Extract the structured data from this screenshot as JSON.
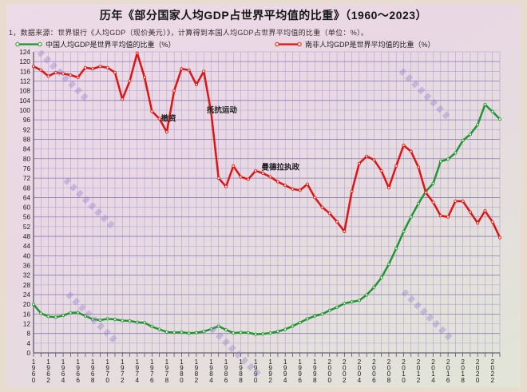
{
  "header": {
    "title": "历年《部分国家人均GDP占世界平均值的比重》（1960～2023）",
    "note": "1，数据来源：世界银行《人均GDP（现价美元）》，计算得到本国人均GDP占世界平均值的比重（单位：%）。"
  },
  "legend": {
    "items": [
      {
        "label": "中国人均GDP是世界平均值的比重（%）",
        "color": "#1f9633"
      },
      {
        "label": "南非人均GDP是世界平均值的比重（%）",
        "color": "#e11212"
      }
    ]
  },
  "colors": {
    "page_background": "#e7dccd",
    "panel_gradient_top": "#eddbe8",
    "panel_gradient_bottom": "#e1e5d7",
    "grid_line": "#aba1d0",
    "grid_line_major": "#897db4",
    "axis_line": "#46405f",
    "marker_fill": "#f2eed4",
    "china_line": "#1f9633",
    "south_africa_line": "#e11212"
  },
  "chart_data": {
    "type": "line",
    "title": "历年《部分国家人均GDP占世界平均值的比重》（1960～2023）",
    "xlabel": "",
    "ylabel": "",
    "ylim": [
      0,
      124
    ],
    "ytick_step": 4,
    "xtick_step": 2,
    "grid": true,
    "legend_position": "top",
    "years": [
      1960,
      1961,
      1962,
      1963,
      1964,
      1965,
      1966,
      1967,
      1968,
      1969,
      1970,
      1971,
      1972,
      1973,
      1974,
      1975,
      1976,
      1977,
      1978,
      1979,
      1980,
      1981,
      1982,
      1983,
      1984,
      1985,
      1986,
      1987,
      1988,
      1989,
      1990,
      1991,
      1992,
      1993,
      1994,
      1995,
      1996,
      1997,
      1998,
      1999,
      2000,
      2001,
      2002,
      2003,
      2004,
      2005,
      2006,
      2007,
      2008,
      2009,
      2010,
      2011,
      2012,
      2013,
      2014,
      2015,
      2016,
      2017,
      2018,
      2019,
      2020,
      2021,
      2022,
      2023
    ],
    "series": [
      {
        "name": "中国人均GDP是世界平均值的比重（%）",
        "color": "#1f9633",
        "values": [
          20.0,
          16.3,
          15.0,
          14.7,
          15.4,
          16.5,
          16.6,
          15.2,
          13.9,
          13.5,
          14.0,
          13.8,
          13.3,
          13.2,
          12.6,
          12.4,
          10.8,
          9.7,
          8.6,
          8.4,
          8.5,
          8.1,
          8.3,
          8.8,
          9.8,
          11.0,
          9.5,
          8.2,
          8.4,
          8.3,
          7.7,
          7.8,
          8.2,
          8.8,
          9.7,
          11.0,
          12.5,
          14.0,
          15.2,
          16.0,
          17.5,
          18.8,
          20.4,
          21.0,
          21.6,
          23.9,
          27.0,
          31.0,
          36.5,
          43.0,
          50.0,
          56.0,
          61.5,
          66.5,
          69.8,
          78.9,
          79.8,
          82.4,
          87.5,
          90.0,
          94.0,
          102.3,
          99.4,
          96.3
        ]
      },
      {
        "name": "南非人均GDP是世界平均值的比重（%）",
        "color": "#e11212",
        "values": [
          118.0,
          116.5,
          114.0,
          115.5,
          115.0,
          114.5,
          113.5,
          117.5,
          117.0,
          118.0,
          117.5,
          115.5,
          104.5,
          112.0,
          123.5,
          113.5,
          99.5,
          96.5,
          91.0,
          108.0,
          117.0,
          116.5,
          110.5,
          116.0,
          99.0,
          72.0,
          68.5,
          77.0,
          72.5,
          71.5,
          75.0,
          74.0,
          72.5,
          70.5,
          69.0,
          67.5,
          67.0,
          69.5,
          64.0,
          60.0,
          57.5,
          54.0,
          50.0,
          66.5,
          78.0,
          81.0,
          79.5,
          75.0,
          68.0,
          77.0,
          85.5,
          83.0,
          76.5,
          66.0,
          62.0,
          56.5,
          56.0,
          62.5,
          62.5,
          58.0,
          53.5,
          58.5,
          54.0,
          47.5
        ]
      }
    ],
    "annotations": [
      {
        "text": "撤资",
        "year": 1977.2,
        "value": 95.5
      },
      {
        "text": "抵抗运动",
        "year": 1983.4,
        "value": 99.0
      },
      {
        "text": "曼德拉执政",
        "year": 1990.8,
        "value": 75.5
      }
    ]
  }
}
